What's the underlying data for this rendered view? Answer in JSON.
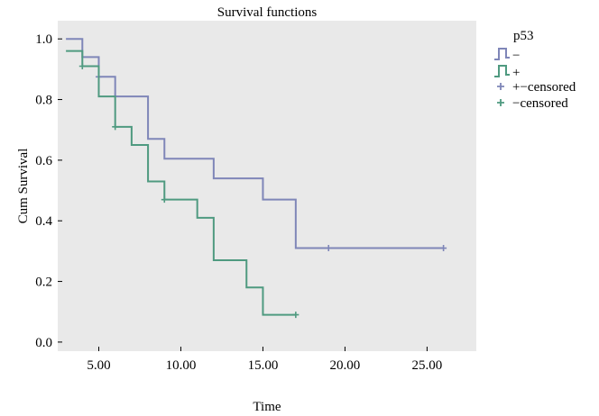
{
  "chart_data": {
    "type": "line",
    "title": "Survival functions",
    "xlabel": "Time",
    "ylabel": "Cum Survival",
    "xlim": [
      2.5,
      28.0
    ],
    "ylim": [
      -0.03,
      1.06
    ],
    "xticks": [
      5,
      10,
      15,
      20,
      25
    ],
    "xtick_labels": [
      "5.00",
      "10.00",
      "15.00",
      "20.00",
      "25.00"
    ],
    "yticks": [
      0,
      0.2,
      0.4,
      0.6,
      0.8,
      1.0
    ],
    "ytick_labels": [
      "0.0",
      "0.2",
      "0.4",
      "0.6",
      "0.8",
      "1.0"
    ],
    "grid": false,
    "legend_position": "right",
    "legend": {
      "title": "p53",
      "entries": [
        "−",
        "+",
        "+−censored",
        "−censored"
      ]
    },
    "series": [
      {
        "name": "−",
        "color": "#7f86b8",
        "steps": [
          [
            3.0,
            1.0
          ],
          [
            4.0,
            0.94
          ],
          [
            5.0,
            0.875
          ],
          [
            6.0,
            0.81
          ],
          [
            8.0,
            0.67
          ],
          [
            9.0,
            0.605
          ],
          [
            12.0,
            0.54
          ],
          [
            15.0,
            0.47
          ],
          [
            17.0,
            0.31
          ],
          [
            26.0,
            0.31
          ]
        ],
        "censored": [
          [
            5.0,
            0.875
          ],
          [
            6.0,
            0.81
          ],
          [
            19.0,
            0.31
          ],
          [
            26.0,
            0.31
          ]
        ]
      },
      {
        "name": "+",
        "color": "#4f9a80",
        "steps": [
          [
            3.0,
            0.96
          ],
          [
            4.0,
            0.91
          ],
          [
            5.0,
            0.81
          ],
          [
            6.0,
            0.71
          ],
          [
            7.0,
            0.65
          ],
          [
            8.0,
            0.53
          ],
          [
            9.0,
            0.47
          ],
          [
            11.0,
            0.41
          ],
          [
            12.0,
            0.27
          ],
          [
            14.0,
            0.18
          ],
          [
            15.0,
            0.09
          ],
          [
            17.0,
            0.09
          ]
        ],
        "censored": [
          [
            4.0,
            0.91
          ],
          [
            6.0,
            0.71
          ],
          [
            9.0,
            0.47
          ],
          [
            17.0,
            0.09
          ]
        ]
      }
    ]
  },
  "colors": {
    "plot_background": "#e9e9e9",
    "series_minus": "#7f86b8",
    "series_plus": "#4f9a80"
  }
}
